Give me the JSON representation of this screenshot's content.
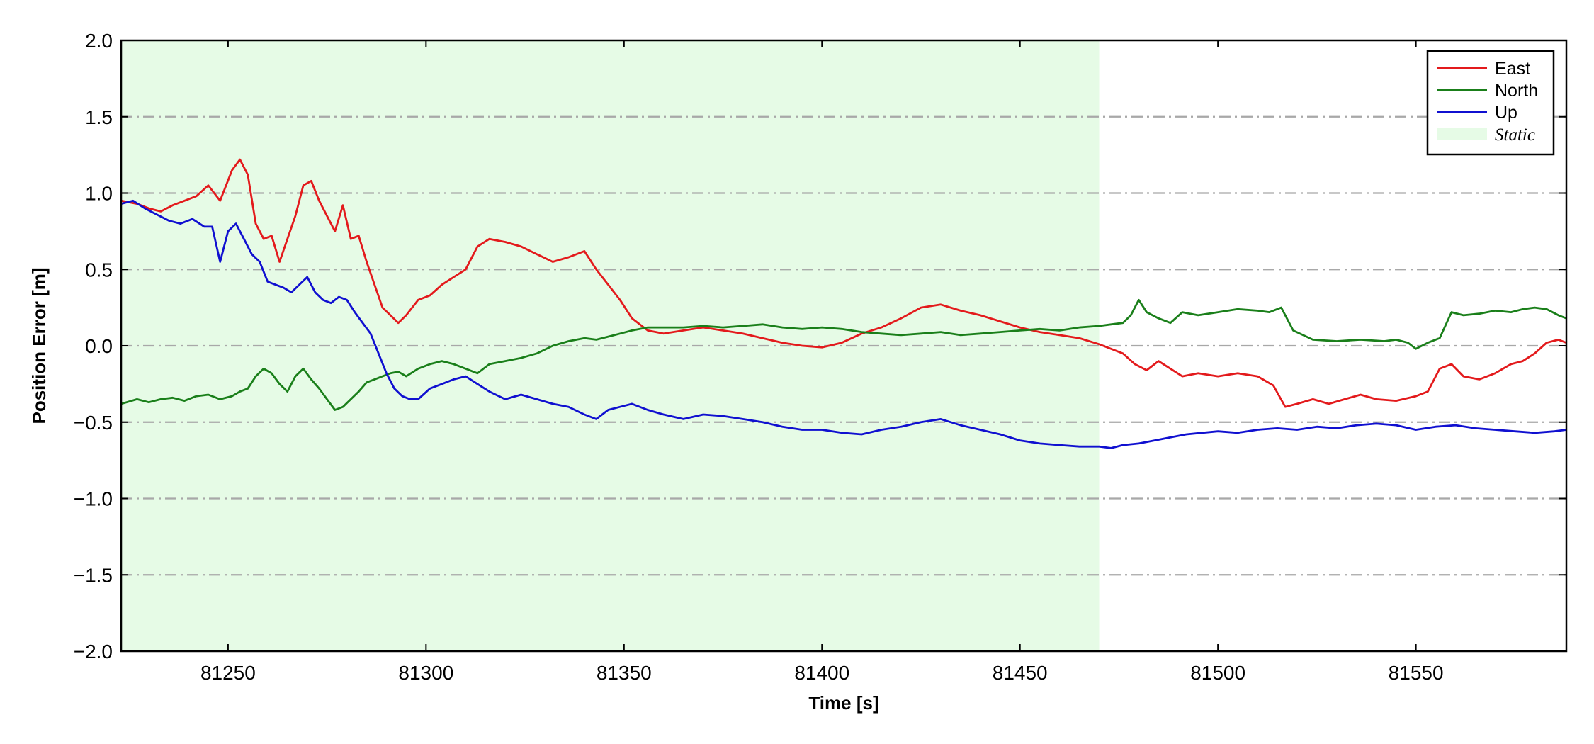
{
  "chart_data": {
    "type": "line",
    "xlabel": "Time [s]",
    "ylabel": "Position Error [m]",
    "xlim": [
      81223,
      81588
    ],
    "ylim": [
      -2.0,
      2.0
    ],
    "xticks": [
      81250,
      81300,
      81350,
      81400,
      81450,
      81500,
      81550
    ],
    "xtick_labels": [
      "81250",
      "81300",
      "81350",
      "81400",
      "81450",
      "81500",
      "81550"
    ],
    "yticks": [
      2.0,
      1.5,
      1.0,
      0.5,
      0.0,
      -0.5,
      -1.0,
      -1.5,
      -2.0
    ],
    "ytick_labels": [
      "2.0",
      "1.5",
      "1.0",
      "0.5",
      "0.0",
      "−0.5",
      "−1.0",
      "−1.5",
      "−2.0"
    ],
    "grid": "horizontal dash-dot gray",
    "legend_position": "top-right",
    "shaded_region": {
      "name": "Static",
      "x_start": 81223,
      "x_end": 81470,
      "color": "#e6fbe6"
    },
    "legend": [
      {
        "label": "East",
        "kind": "line",
        "color": "#e31a1c"
      },
      {
        "label": "North",
        "kind": "line",
        "color": "#1a7f1a"
      },
      {
        "label": "Up",
        "kind": "line",
        "color": "#1010d0"
      },
      {
        "label": "Static",
        "kind": "patch",
        "color": "#e6fbe6"
      }
    ],
    "series": [
      {
        "name": "East",
        "color": "#e31a1c",
        "x": [
          81223,
          81227,
          81230,
          81233,
          81236,
          81239,
          81242,
          81245,
          81248,
          81251,
          81253,
          81255,
          81257,
          81259,
          81261,
          81263,
          81265,
          81267,
          81269,
          81271,
          81273,
          81275,
          81277,
          81279,
          81281,
          81283,
          81285,
          81287,
          81289,
          81291,
          81293,
          81295,
          81298,
          81301,
          81304,
          81307,
          81310,
          81313,
          81316,
          81320,
          81324,
          81328,
          81332,
          81336,
          81340,
          81343,
          81346,
          81349,
          81352,
          81356,
          81360,
          81365,
          81370,
          81375,
          81380,
          81385,
          81390,
          81395,
          81400,
          81405,
          81410,
          81415,
          81420,
          81425,
          81430,
          81435,
          81440,
          81445,
          81450,
          81455,
          81460,
          81465,
          81470,
          81473,
          81476,
          81479,
          81482,
          81485,
          81488,
          81491,
          81495,
          81500,
          81505,
          81510,
          81514,
          81517,
          81520,
          81524,
          81528,
          81532,
          81536,
          81540,
          81545,
          81550,
          81553,
          81556,
          81559,
          81562,
          81566,
          81570,
          81574,
          81577,
          81580,
          81583,
          81586,
          81588
        ],
        "y": [
          0.95,
          0.93,
          0.9,
          0.88,
          0.92,
          0.95,
          0.98,
          1.05,
          0.95,
          1.15,
          1.22,
          1.12,
          0.8,
          0.7,
          0.72,
          0.55,
          0.7,
          0.85,
          1.05,
          1.08,
          0.95,
          0.85,
          0.75,
          0.92,
          0.7,
          0.72,
          0.55,
          0.4,
          0.25,
          0.2,
          0.15,
          0.2,
          0.3,
          0.33,
          0.4,
          0.45,
          0.5,
          0.65,
          0.7,
          0.68,
          0.65,
          0.6,
          0.55,
          0.58,
          0.62,
          0.5,
          0.4,
          0.3,
          0.18,
          0.1,
          0.08,
          0.1,
          0.12,
          0.1,
          0.08,
          0.05,
          0.02,
          0.0,
          -0.01,
          0.02,
          0.08,
          0.12,
          0.18,
          0.25,
          0.27,
          0.23,
          0.2,
          0.16,
          0.12,
          0.09,
          0.07,
          0.05,
          0.01,
          -0.02,
          -0.05,
          -0.12,
          -0.16,
          -0.1,
          -0.15,
          -0.2,
          -0.18,
          -0.2,
          -0.18,
          -0.2,
          -0.26,
          -0.4,
          -0.38,
          -0.35,
          -0.38,
          -0.35,
          -0.32,
          -0.35,
          -0.36,
          -0.33,
          -0.3,
          -0.15,
          -0.12,
          -0.2,
          -0.22,
          -0.18,
          -0.12,
          -0.1,
          -0.05,
          0.02,
          0.04,
          0.02
        ]
      },
      {
        "name": "North",
        "color": "#1a7f1a",
        "x": [
          81223,
          81227,
          81230,
          81233,
          81236,
          81239,
          81242,
          81245,
          81248,
          81251,
          81253,
          81255,
          81257,
          81259,
          81261,
          81263,
          81265,
          81267,
          81269,
          81271,
          81273,
          81275,
          81277,
          81279,
          81281,
          81283,
          81285,
          81287,
          81289,
          81291,
          81293,
          81295,
          81298,
          81301,
          81304,
          81307,
          81310,
          81313,
          81316,
          81320,
          81324,
          81328,
          81332,
          81336,
          81340,
          81343,
          81346,
          81349,
          81352,
          81356,
          81360,
          81365,
          81370,
          81375,
          81380,
          81385,
          81390,
          81395,
          81400,
          81405,
          81410,
          81415,
          81420,
          81425,
          81430,
          81435,
          81440,
          81445,
          81450,
          81455,
          81460,
          81465,
          81470,
          81473,
          81476,
          81478,
          81480,
          81482,
          81485,
          81488,
          81491,
          81495,
          81500,
          81505,
          81510,
          81513,
          81516,
          81519,
          81524,
          81530,
          81536,
          81542,
          81545,
          81548,
          81550,
          81553,
          81556,
          81559,
          81562,
          81566,
          81570,
          81574,
          81577,
          81580,
          81583,
          81586,
          81588
        ],
        "y": [
          -0.38,
          -0.35,
          -0.37,
          -0.35,
          -0.34,
          -0.36,
          -0.33,
          -0.32,
          -0.35,
          -0.33,
          -0.3,
          -0.28,
          -0.2,
          -0.15,
          -0.18,
          -0.25,
          -0.3,
          -0.2,
          -0.15,
          -0.22,
          -0.28,
          -0.35,
          -0.42,
          -0.4,
          -0.35,
          -0.3,
          -0.24,
          -0.22,
          -0.2,
          -0.18,
          -0.17,
          -0.2,
          -0.15,
          -0.12,
          -0.1,
          -0.12,
          -0.15,
          -0.18,
          -0.12,
          -0.1,
          -0.08,
          -0.05,
          0.0,
          0.03,
          0.05,
          0.04,
          0.06,
          0.08,
          0.1,
          0.12,
          0.12,
          0.12,
          0.13,
          0.12,
          0.13,
          0.14,
          0.12,
          0.11,
          0.12,
          0.11,
          0.09,
          0.08,
          0.07,
          0.08,
          0.09,
          0.07,
          0.08,
          0.09,
          0.1,
          0.11,
          0.1,
          0.12,
          0.13,
          0.14,
          0.15,
          0.2,
          0.3,
          0.22,
          0.18,
          0.15,
          0.22,
          0.2,
          0.22,
          0.24,
          0.23,
          0.22,
          0.25,
          0.1,
          0.04,
          0.03,
          0.04,
          0.03,
          0.04,
          0.02,
          -0.02,
          0.02,
          0.05,
          0.22,
          0.2,
          0.21,
          0.23,
          0.22,
          0.24,
          0.25,
          0.24,
          0.2,
          0.18
        ]
      },
      {
        "name": "Up",
        "color": "#1010d0",
        "x": [
          81223,
          81226,
          81229,
          81232,
          81235,
          81238,
          81241,
          81244,
          81246,
          81248,
          81250,
          81252,
          81254,
          81256,
          81258,
          81260,
          81262,
          81264,
          81266,
          81268,
          81270,
          81272,
          81274,
          81276,
          81278,
          81280,
          81282,
          81284,
          81286,
          81288,
          81290,
          81292,
          81294,
          81296,
          81298,
          81301,
          81304,
          81307,
          81310,
          81313,
          81316,
          81320,
          81324,
          81328,
          81332,
          81336,
          81340,
          81343,
          81346,
          81349,
          81352,
          81356,
          81360,
          81365,
          81370,
          81375,
          81380,
          81385,
          81390,
          81395,
          81400,
          81405,
          81410,
          81415,
          81420,
          81425,
          81430,
          81435,
          81440,
          81445,
          81450,
          81455,
          81460,
          81465,
          81470,
          81473,
          81476,
          81480,
          81484,
          81488,
          81492,
          81496,
          81500,
          81505,
          81510,
          81515,
          81520,
          81525,
          81530,
          81535,
          81540,
          81545,
          81550,
          81555,
          81560,
          81565,
          81570,
          81575,
          81580,
          81585,
          81588
        ],
        "y": [
          0.93,
          0.95,
          0.9,
          0.86,
          0.82,
          0.8,
          0.83,
          0.78,
          0.78,
          0.55,
          0.75,
          0.8,
          0.7,
          0.6,
          0.55,
          0.42,
          0.4,
          0.38,
          0.35,
          0.4,
          0.45,
          0.35,
          0.3,
          0.28,
          0.32,
          0.3,
          0.22,
          0.15,
          0.08,
          -0.05,
          -0.18,
          -0.28,
          -0.33,
          -0.35,
          -0.35,
          -0.28,
          -0.25,
          -0.22,
          -0.2,
          -0.25,
          -0.3,
          -0.35,
          -0.32,
          -0.35,
          -0.38,
          -0.4,
          -0.45,
          -0.48,
          -0.42,
          -0.4,
          -0.38,
          -0.42,
          -0.45,
          -0.48,
          -0.45,
          -0.46,
          -0.48,
          -0.5,
          -0.53,
          -0.55,
          -0.55,
          -0.57,
          -0.58,
          -0.55,
          -0.53,
          -0.5,
          -0.48,
          -0.52,
          -0.55,
          -0.58,
          -0.62,
          -0.64,
          -0.65,
          -0.66,
          -0.66,
          -0.67,
          -0.65,
          -0.64,
          -0.62,
          -0.6,
          -0.58,
          -0.57,
          -0.56,
          -0.57,
          -0.55,
          -0.54,
          -0.55,
          -0.53,
          -0.54,
          -0.52,
          -0.51,
          -0.52,
          -0.55,
          -0.53,
          -0.52,
          -0.54,
          -0.55,
          -0.56,
          -0.57,
          -0.56,
          -0.55
        ]
      }
    ]
  }
}
